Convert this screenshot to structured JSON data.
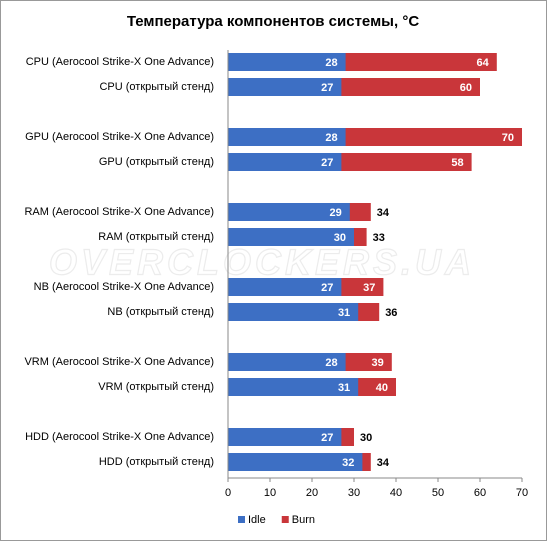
{
  "chart_data": {
    "type": "overlap_bar",
    "title": "Температура компонентов системы, °C",
    "watermark": "OVERCLOCKERS.UA",
    "categories": [
      "CPU (Aerocool Strike-X One Advance)",
      "CPU (открытый стенд)",
      "GPU (Aerocool Strike-X One Advance)",
      "GPU (открытый стенд)",
      "RAM (Aerocool Strike-X One Advance)",
      "RAM (открытый стенд)",
      "NB (Aerocool Strike-X One Advance)",
      "NB (открытый стенд)",
      "VRM (Aerocool Strike-X One Advance)",
      "VRM (открытый стенд)",
      "HDD (Aerocool Strike-X One Advance)",
      "HDD (открытый стенд)"
    ],
    "series": [
      {
        "name": "Idle",
        "color": "#3d6fc4",
        "values": [
          28,
          27,
          28,
          27,
          29,
          30,
          27,
          31,
          28,
          31,
          27,
          32
        ]
      },
      {
        "name": "Burn",
        "color": "#c9363a",
        "values": [
          64,
          60,
          70,
          58,
          34,
          33,
          37,
          36,
          39,
          40,
          30,
          34
        ]
      }
    ],
    "xlim": [
      0,
      70
    ],
    "xticks": [
      0,
      10,
      20,
      30,
      40,
      50,
      60,
      70
    ],
    "legend": "bottom"
  }
}
